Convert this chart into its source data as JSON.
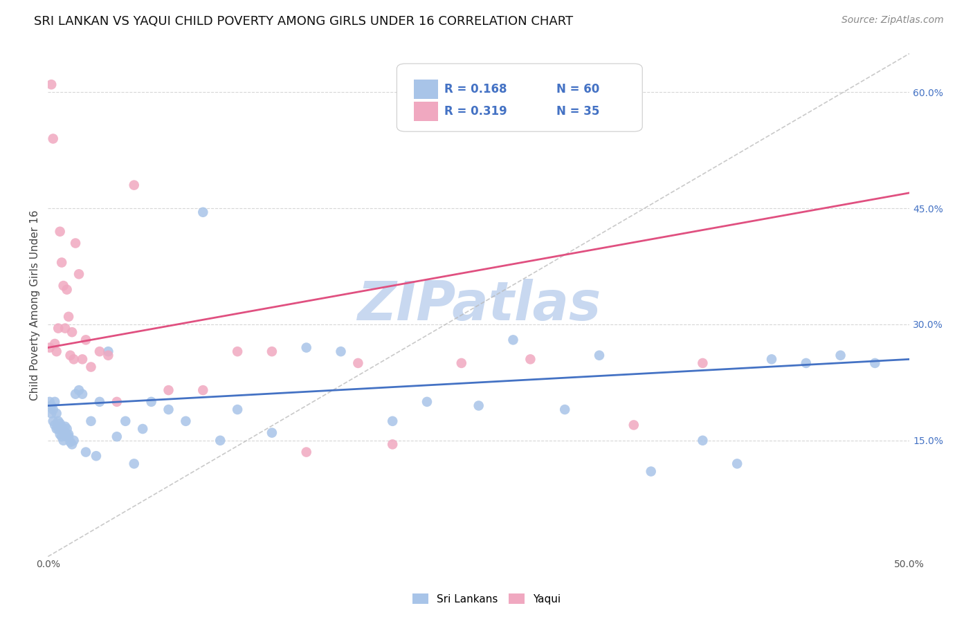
{
  "title": "SRI LANKAN VS YAQUI CHILD POVERTY AMONG GIRLS UNDER 16 CORRELATION CHART",
  "source": "Source: ZipAtlas.com",
  "ylabel": "Child Poverty Among Girls Under 16",
  "xlim": [
    0.0,
    0.5
  ],
  "ylim": [
    0.0,
    0.65
  ],
  "xticks": [
    0.0,
    0.1,
    0.2,
    0.3,
    0.4,
    0.5
  ],
  "xticklabels": [
    "0.0%",
    "",
    "",
    "",
    "",
    "50.0%"
  ],
  "yticks_right": [
    0.15,
    0.3,
    0.45,
    0.6
  ],
  "ytick_labels_right": [
    "15.0%",
    "30.0%",
    "45.0%",
    "60.0%"
  ],
  "grid_color": "#cccccc",
  "background_color": "#ffffff",
  "watermark": "ZIPatlas",
  "watermark_color": "#c8d8f0",
  "sri_lanka_color": "#a8c4e8",
  "yaqui_color": "#f0a8c0",
  "sri_lanka_line_color": "#4472c4",
  "yaqui_line_color": "#e05080",
  "diagonal_line_color": "#b8b8b8",
  "legend_R1": "R = 0.168",
  "legend_N1": "N = 60",
  "legend_R2": "R = 0.319",
  "legend_N2": "N = 35",
  "legend_text_color": "#4472c4",
  "title_fontsize": 13,
  "source_fontsize": 10,
  "axis_label_fontsize": 11,
  "tick_fontsize": 10,
  "sri_lankans_x": [
    0.001,
    0.002,
    0.002,
    0.003,
    0.003,
    0.004,
    0.004,
    0.005,
    0.005,
    0.006,
    0.006,
    0.007,
    0.007,
    0.008,
    0.008,
    0.009,
    0.009,
    0.01,
    0.01,
    0.011,
    0.011,
    0.012,
    0.012,
    0.013,
    0.014,
    0.015,
    0.016,
    0.018,
    0.02,
    0.022,
    0.025,
    0.028,
    0.03,
    0.035,
    0.04,
    0.045,
    0.05,
    0.055,
    0.06,
    0.07,
    0.08,
    0.09,
    0.1,
    0.11,
    0.13,
    0.15,
    0.17,
    0.2,
    0.22,
    0.25,
    0.27,
    0.3,
    0.32,
    0.35,
    0.38,
    0.4,
    0.42,
    0.44,
    0.46,
    0.48
  ],
  "sri_lankans_y": [
    0.2,
    0.195,
    0.185,
    0.19,
    0.175,
    0.2,
    0.17,
    0.185,
    0.165,
    0.175,
    0.165,
    0.172,
    0.158,
    0.168,
    0.155,
    0.162,
    0.15,
    0.16,
    0.168,
    0.155,
    0.165,
    0.155,
    0.158,
    0.148,
    0.145,
    0.15,
    0.21,
    0.215,
    0.21,
    0.135,
    0.175,
    0.13,
    0.2,
    0.265,
    0.155,
    0.175,
    0.12,
    0.165,
    0.2,
    0.19,
    0.175,
    0.445,
    0.15,
    0.19,
    0.16,
    0.27,
    0.265,
    0.175,
    0.2,
    0.195,
    0.28,
    0.19,
    0.26,
    0.11,
    0.15,
    0.12,
    0.255,
    0.25,
    0.26,
    0.25
  ],
  "yaqui_x": [
    0.001,
    0.002,
    0.003,
    0.004,
    0.005,
    0.006,
    0.007,
    0.008,
    0.009,
    0.01,
    0.011,
    0.012,
    0.013,
    0.014,
    0.015,
    0.016,
    0.018,
    0.02,
    0.022,
    0.025,
    0.03,
    0.035,
    0.04,
    0.05,
    0.07,
    0.09,
    0.11,
    0.13,
    0.15,
    0.18,
    0.2,
    0.24,
    0.28,
    0.34,
    0.38
  ],
  "yaqui_y": [
    0.27,
    0.61,
    0.54,
    0.275,
    0.265,
    0.295,
    0.42,
    0.38,
    0.35,
    0.295,
    0.345,
    0.31,
    0.26,
    0.29,
    0.255,
    0.405,
    0.365,
    0.255,
    0.28,
    0.245,
    0.265,
    0.26,
    0.2,
    0.48,
    0.215,
    0.215,
    0.265,
    0.265,
    0.135,
    0.25,
    0.145,
    0.25,
    0.255,
    0.17,
    0.25
  ],
  "sri_lanka_trend": [
    0.0,
    0.5,
    0.195,
    0.255
  ],
  "yaqui_trend": [
    0.0,
    0.5,
    0.27,
    0.47
  ],
  "diag_line": [
    0.0,
    0.5,
    0.0,
    0.65
  ]
}
